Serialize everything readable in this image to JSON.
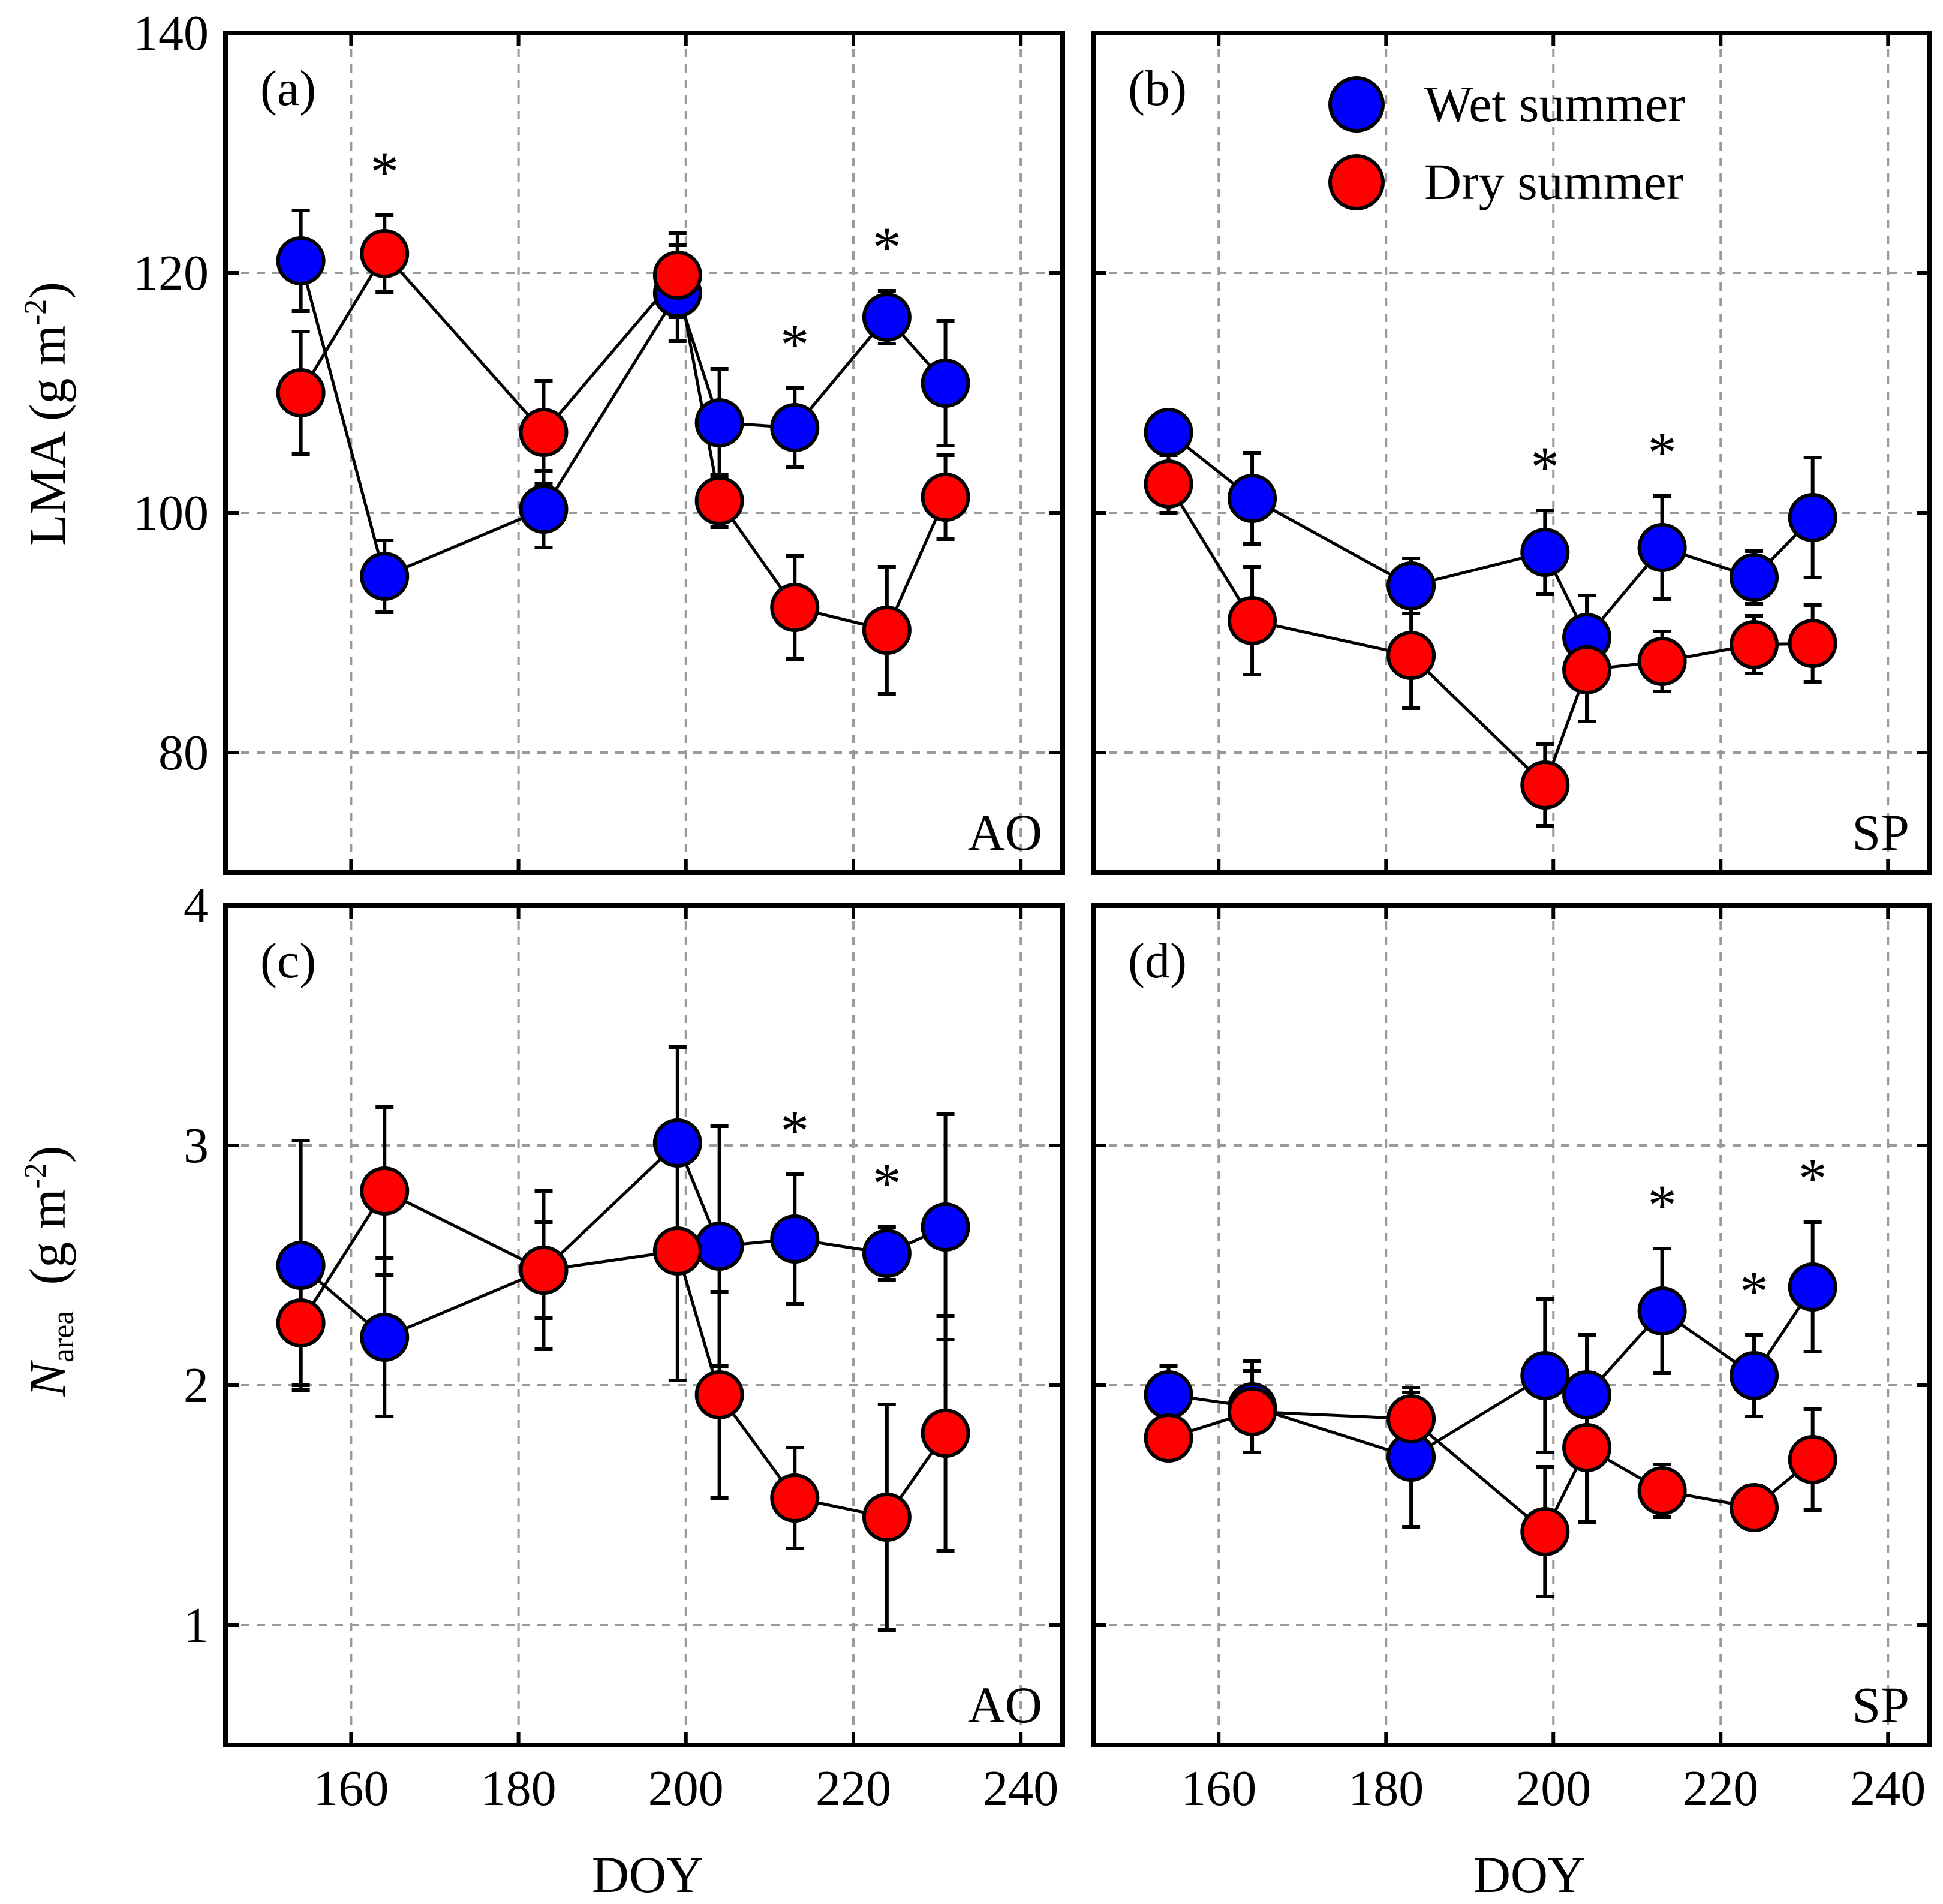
{
  "legend": {
    "wet_label": "Wet summer",
    "dry_label": "Dry summer",
    "wet_color": "#0000ff",
    "dry_color": "#ff0000"
  },
  "x_axis": {
    "label": "DOY",
    "ticks": [
      160,
      180,
      200,
      220,
      240
    ],
    "range": [
      145,
      245
    ]
  },
  "chart_data": [
    {
      "type": "scatter",
      "panel": "(a)",
      "site": "AO",
      "ylabel": "LMA (g m-2)",
      "ylim": [
        70,
        140
      ],
      "yticks": [
        80,
        100,
        120,
        140
      ],
      "grid": true,
      "x": [
        154,
        164,
        183,
        199,
        204,
        213,
        224,
        231
      ],
      "series": [
        {
          "name": "Wet summer",
          "values": [
            121,
            94.7,
            100.3,
            118.3,
            107.5,
            107.1,
            116.3,
            110.8
          ],
          "errors": [
            4.2,
            3.0,
            3.2,
            4.0,
            4.5,
            3.3,
            2.2,
            5.2
          ]
        },
        {
          "name": "Dry summer",
          "values": [
            110,
            121.6,
            106.7,
            119.8,
            101.0,
            92.1,
            90.2,
            101.3
          ],
          "errors": [
            5.1,
            3.2,
            4.3,
            3.5,
            2.2,
            4.3,
            5.3,
            3.5
          ]
        }
      ],
      "significance_x": [
        164,
        213,
        224
      ],
      "significance_label": "*"
    },
    {
      "type": "scatter",
      "panel": "(b)",
      "site": "SP",
      "ylabel": "",
      "ylim": [
        70,
        140
      ],
      "yticks": [
        80,
        100,
        120,
        140
      ],
      "grid": true,
      "x": [
        154,
        164,
        183,
        199,
        204,
        213,
        224,
        231
      ],
      "series": [
        {
          "name": "Wet summer",
          "values": [
            106.7,
            101.2,
            93.9,
            96.7,
            89.6,
            97.1,
            94.6,
            99.6
          ],
          "errors": [
            1.8,
            3.8,
            2.3,
            3.5,
            3.5,
            4.3,
            2.2,
            5.0
          ]
        },
        {
          "name": "Dry summer",
          "values": [
            102.4,
            91.0,
            88.1,
            77.3,
            86.9,
            87.6,
            89.0,
            89.1
          ],
          "errors": [
            2.4,
            4.5,
            4.4,
            3.4,
            4.3,
            2.5,
            2.4,
            3.2
          ]
        }
      ],
      "significance_x": [
        199,
        213
      ],
      "significance_label": "*"
    },
    {
      "type": "scatter",
      "panel": "(c)",
      "site": "AO",
      "ylabel": "N area (g m-2)",
      "ylim": [
        0.5,
        4
      ],
      "yticks": [
        1,
        2,
        3,
        4
      ],
      "grid": true,
      "x": [
        154,
        164,
        183,
        199,
        204,
        213,
        224,
        231
      ],
      "series": [
        {
          "name": "Wet summer",
          "values": [
            2.5,
            2.2,
            2.48,
            3.01,
            2.58,
            2.61,
            2.55,
            2.66
          ],
          "errors": [
            0.52,
            0.33,
            0.2,
            0.4,
            0.5,
            0.27,
            0.11,
            0.47
          ]
        },
        {
          "name": "Dry summer",
          "values": [
            2.26,
            2.81,
            2.48,
            2.56,
            1.96,
            1.53,
            1.45,
            1.8
          ],
          "errors": [
            0.26,
            0.35,
            0.33,
            0.54,
            0.43,
            0.21,
            0.47,
            0.49
          ]
        }
      ],
      "significance_x": [
        213,
        224
      ],
      "significance_label": "*"
    },
    {
      "type": "scatter",
      "panel": "(d)",
      "site": "SP",
      "ylabel": "",
      "ylim": [
        0.5,
        4
      ],
      "yticks": [
        1,
        2,
        3,
        4
      ],
      "grid": true,
      "x": [
        154,
        164,
        183,
        199,
        204,
        213,
        224,
        231
      ],
      "series": [
        {
          "name": "Wet summer",
          "values": [
            1.96,
            1.91,
            1.7,
            2.04,
            1.96,
            2.31,
            2.04,
            2.41
          ],
          "errors": [
            0.12,
            0.19,
            0.29,
            0.32,
            0.25,
            0.26,
            0.17,
            0.27
          ]
        },
        {
          "name": "Dry summer",
          "values": [
            1.78,
            1.89,
            1.86,
            1.39,
            1.74,
            1.56,
            1.49,
            1.69
          ],
          "errors": [
            0.08,
            0.17,
            0.11,
            0.27,
            0.31,
            0.11,
            0.09,
            0.21
          ]
        }
      ],
      "significance_x": [
        213,
        224,
        231
      ],
      "significance_label": "*"
    }
  ]
}
